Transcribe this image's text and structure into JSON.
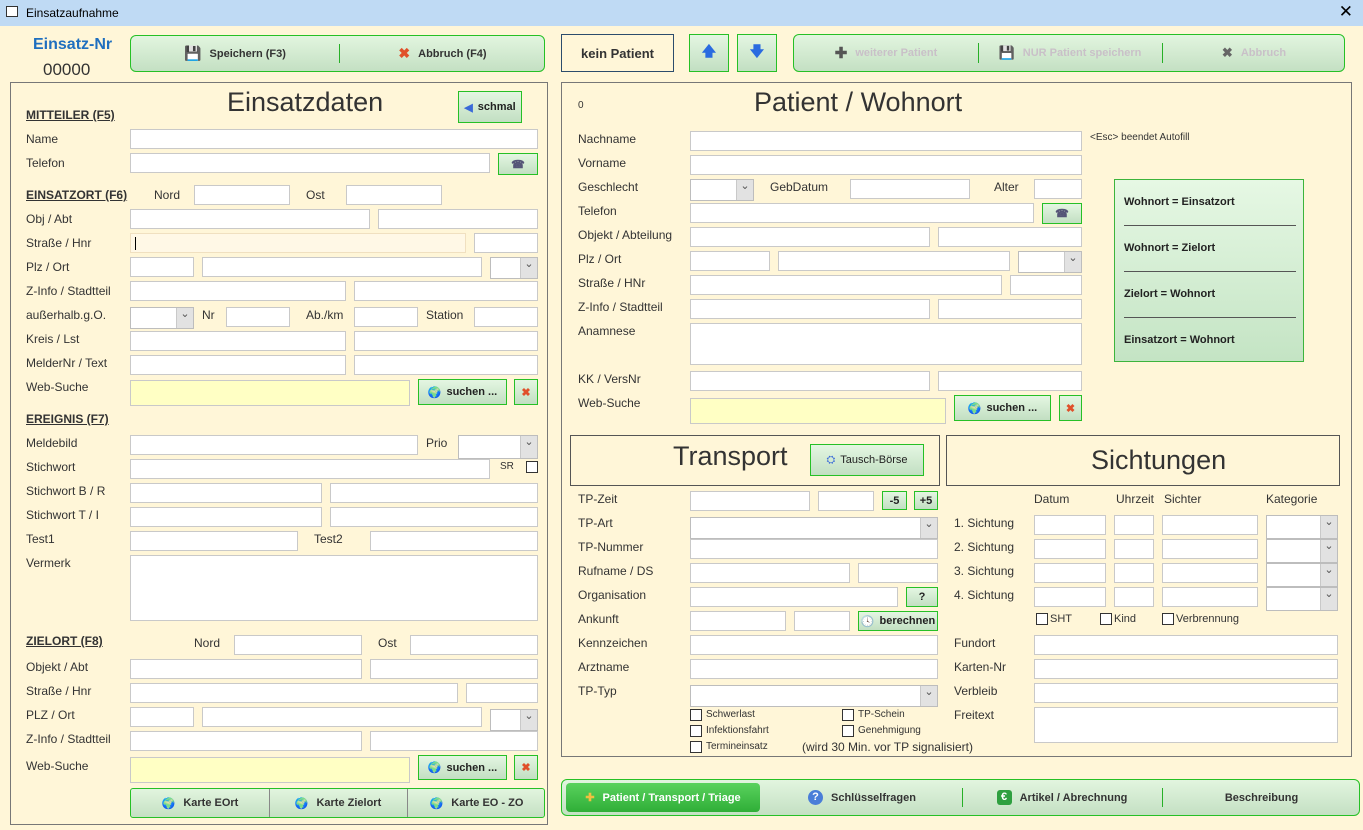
{
  "window": {
    "title": "Einsatzaufnahme"
  },
  "einsatz": {
    "label": "Einsatz-Nr",
    "number": "00000"
  },
  "toolbar_left": {
    "save": "Speichern (F3)",
    "cancel": "Abbruch (F4)"
  },
  "patient_status": "kein Patient",
  "toolbar_right": {
    "add": "weiterer Patient",
    "save_only": "NUR Patient speichern",
    "cancel": "Abbruch"
  },
  "einsatzdaten": {
    "title": "Einsatzdaten",
    "narrow_button": "schmal",
    "mitteiler": {
      "heading": "MITTEILER  (F5)",
      "name": "Name",
      "telefon": "Telefon"
    },
    "einsatzort": {
      "heading": "EINSATZORT  (F6)",
      "nord": "Nord",
      "ost": "Ost",
      "obj": "Obj / Abt",
      "strasse": "Straße / Hnr",
      "plz": "Plz / Ort",
      "zinfo": "Z-Info / Stadtteil",
      "ausserhalb": "außerhalb.g.O.",
      "nr": "Nr",
      "abkm": "Ab./km",
      "station": "Station",
      "kreis": "Kreis / Lst",
      "melder": "MelderNr / Text",
      "websuche": "Web-Suche"
    },
    "ereignis": {
      "heading": "EREIGNIS  (F7)",
      "meldebild": "Meldebild",
      "prio": "Prio",
      "stichwort": "Stichwort",
      "sr": "SR",
      "stichwort_br": "Stichwort B / R",
      "stichwort_ti": "Stichwort T / I",
      "test1": "Test1",
      "test2": "Test2",
      "vermerk": "Vermerk"
    },
    "zielort": {
      "heading": "ZIELORT  (F8)",
      "nord": "Nord",
      "ost": "Ost",
      "obj": "Objekt / Abt",
      "strasse": "Straße / Hnr",
      "plz": "PLZ / Ort",
      "zinfo": "Z-Info / Stadtteil",
      "websuche": "Web-Suche"
    },
    "search_button": "suchen ...",
    "map_buttons": [
      "Karte EOrt",
      "Karte Zielort",
      "Karte EO - ZO"
    ]
  },
  "patient": {
    "index": "0",
    "title": "Patient / Wohnort",
    "autofill_hint": "<Esc> beendet Autofill",
    "nachname": "Nachname",
    "vorname": "Vorname",
    "geschlecht": "Geschlecht",
    "gebdatum": "GebDatum",
    "alter": "Alter",
    "telefon": "Telefon",
    "objekt": "Objekt / Abteilung",
    "plz": "Plz / Ort",
    "strasse": "Straße / HNr",
    "zinfo": "Z-Info / Stadtteil",
    "anamnese": "Anamnese",
    "kk": "KK / VersNr",
    "websuche": "Web-Suche",
    "search_button": "suchen ...",
    "copy_actions": [
      "Wohnort = Einsatzort",
      "Wohnort = Zielort",
      "Zielort = Wohnort",
      "Einsatzort = Wohnort"
    ]
  },
  "transport": {
    "title": "Transport",
    "exchange_button": "Tausch-Börse",
    "tpzeit": "TP-Zeit",
    "minus5": "-5",
    "plus5": "+5",
    "tpart": "TP-Art",
    "tpnummer": "TP-Nummer",
    "rufname": "Rufname / DS",
    "organisation": "Organisation",
    "question": "?",
    "ankunft": "Ankunft",
    "berechnen": "berechnen",
    "kennzeichen": "Kennzeichen",
    "arztname": "Arztname",
    "tptyp": "TP-Typ",
    "checks": {
      "schwerlast": "Schwerlast",
      "infektion": "Infektionsfahrt",
      "termin": "Termineinsatz",
      "tpschein": "TP-Schein",
      "genehmigung": "Genehmigung"
    },
    "note": "(wird 30 Min. vor TP signalisiert)"
  },
  "sichtungen": {
    "title": "Sichtungen",
    "columns": [
      "Datum",
      "Uhrzeit",
      "Sichter",
      "Kategorie"
    ],
    "rows": [
      "1. Sichtung",
      "2. Sichtung",
      "3. Sichtung",
      "4. Sichtung"
    ],
    "checks": [
      "SHT",
      "Kind",
      "Verbrennung"
    ],
    "fundort": "Fundort",
    "karten": "Karten-Nr",
    "verbleib": "Verbleib",
    "freitext": "Freitext"
  },
  "tabs": [
    "Patient / Transport / Triage",
    "Schlüsselfragen",
    "Artikel / Abrechnung",
    "Beschreibung"
  ],
  "colors": {
    "accent_green": "#26c026",
    "active_tab": "#3cc244",
    "title_blue": "#1f6fbf",
    "background": "#fff6d8"
  }
}
